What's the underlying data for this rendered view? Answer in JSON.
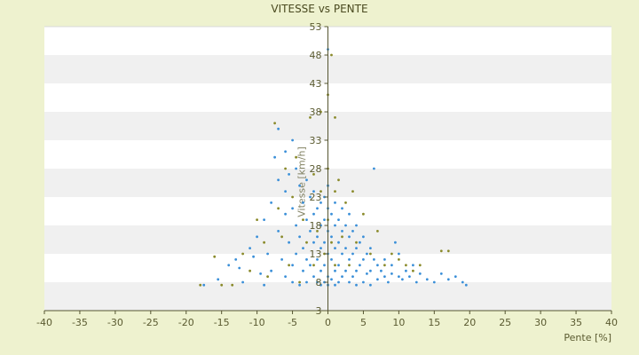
{
  "chart_data": {
    "type": "scatter",
    "title": "VITESSE vs PENTE",
    "xlabel": "Pente [%]",
    "ylabel": "Vitesse [km/h]",
    "xlim": [
      -40,
      40
    ],
    "ylim": [
      3,
      53
    ],
    "x_ticks": [
      "-40",
      "-35",
      "-30",
      "-25",
      "-20",
      "-15",
      "-10",
      "-5",
      "0",
      "5",
      "10",
      "15",
      "20",
      "25",
      "30",
      "35",
      "40"
    ],
    "y_ticks": [
      "3",
      "8",
      "13",
      "18",
      "23",
      "28",
      "33",
      "38",
      "43",
      "48",
      "53"
    ],
    "grid": "horizontal alternating bands",
    "legend": "none",
    "colors": {
      "background": "#eef2cf",
      "band_light": "#ffffff",
      "band_dark": "#f0f0f0",
      "series_blue": "#3a8fd8",
      "series_olive": "#8a8a2a",
      "axis": "#555530"
    },
    "series": [
      {
        "color": "#3a8fd8",
        "points": [
          [
            -17.5,
            7.5
          ],
          [
            -15.5,
            8.5
          ],
          [
            -14,
            11
          ],
          [
            -13,
            12
          ],
          [
            -12.5,
            10.5
          ],
          [
            -12,
            8
          ],
          [
            -11,
            14
          ],
          [
            -10.5,
            12.5
          ],
          [
            -10,
            16
          ],
          [
            -9.5,
            9.5
          ],
          [
            -9,
            19
          ],
          [
            -9,
            7.5
          ],
          [
            -8.5,
            13
          ],
          [
            -8,
            22
          ],
          [
            -8,
            10
          ],
          [
            -7.5,
            30
          ],
          [
            -7,
            35
          ],
          [
            -7,
            26
          ],
          [
            -7,
            17
          ],
          [
            -6.5,
            12
          ],
          [
            -6,
            31
          ],
          [
            -6,
            24
          ],
          [
            -6,
            20
          ],
          [
            -6,
            9
          ],
          [
            -5.5,
            27
          ],
          [
            -5.5,
            15
          ],
          [
            -5,
            33
          ],
          [
            -5,
            21
          ],
          [
            -5,
            11
          ],
          [
            -5,
            8
          ],
          [
            -4.5,
            28
          ],
          [
            -4.5,
            18
          ],
          [
            -4.5,
            13
          ],
          [
            -4,
            25
          ],
          [
            -4,
            16
          ],
          [
            -4,
            7.5
          ],
          [
            -3.5,
            22
          ],
          [
            -3.5,
            14
          ],
          [
            -3.5,
            10
          ],
          [
            -3,
            26
          ],
          [
            -3,
            19
          ],
          [
            -3,
            12
          ],
          [
            -3,
            8
          ],
          [
            -2.5,
            23
          ],
          [
            -2.5,
            17
          ],
          [
            -2.5,
            11
          ],
          [
            -2,
            24
          ],
          [
            -2,
            20
          ],
          [
            -2,
            15
          ],
          [
            -2,
            9
          ],
          [
            -1.5,
            21
          ],
          [
            -1.5,
            16
          ],
          [
            -1.5,
            12
          ],
          [
            -1.5,
            8
          ],
          [
            -1,
            22
          ],
          [
            -1,
            18
          ],
          [
            -1,
            14
          ],
          [
            -1,
            10
          ],
          [
            -1,
            7.5
          ],
          [
            -0.5,
            23
          ],
          [
            -0.5,
            19
          ],
          [
            -0.5,
            15
          ],
          [
            -0.5,
            11
          ],
          [
            -0.5,
            8
          ],
          [
            0,
            49
          ],
          [
            0,
            25
          ],
          [
            0,
            21
          ],
          [
            0,
            17
          ],
          [
            0,
            13
          ],
          [
            0,
            9
          ],
          [
            0,
            7.5
          ],
          [
            0.5,
            20
          ],
          [
            0.5,
            16
          ],
          [
            0.5,
            12
          ],
          [
            0.5,
            8.5
          ],
          [
            1,
            22
          ],
          [
            1,
            18
          ],
          [
            1,
            14
          ],
          [
            1,
            10
          ],
          [
            1,
            7.5
          ],
          [
            1.5,
            19
          ],
          [
            1.5,
            15
          ],
          [
            1.5,
            11
          ],
          [
            1.5,
            8
          ],
          [
            2,
            21
          ],
          [
            2,
            17
          ],
          [
            2,
            13
          ],
          [
            2,
            9
          ],
          [
            2.5,
            18
          ],
          [
            2.5,
            14
          ],
          [
            2.5,
            10
          ],
          [
            3,
            20
          ],
          [
            3,
            16
          ],
          [
            3,
            12
          ],
          [
            3,
            8
          ],
          [
            3.5,
            17
          ],
          [
            3.5,
            13
          ],
          [
            3.5,
            9
          ],
          [
            4,
            18
          ],
          [
            4,
            14
          ],
          [
            4,
            10
          ],
          [
            4,
            7.5
          ],
          [
            4.5,
            15
          ],
          [
            4.5,
            11
          ],
          [
            5,
            16
          ],
          [
            5,
            12
          ],
          [
            5,
            8
          ],
          [
            5.5,
            13
          ],
          [
            5.5,
            9.5
          ],
          [
            6,
            14
          ],
          [
            6,
            10
          ],
          [
            6,
            7.5
          ],
          [
            6.5,
            28
          ],
          [
            6.5,
            12
          ],
          [
            7,
            11
          ],
          [
            7,
            8.5
          ],
          [
            7.5,
            10
          ],
          [
            8,
            12
          ],
          [
            8,
            9
          ],
          [
            8.5,
            8
          ],
          [
            9,
            11
          ],
          [
            9,
            9.5
          ],
          [
            9.5,
            15
          ],
          [
            10,
            9
          ],
          [
            10,
            13
          ],
          [
            10.5,
            8.5
          ],
          [
            11,
            10
          ],
          [
            11.5,
            9
          ],
          [
            12,
            11
          ],
          [
            12.5,
            8
          ],
          [
            13,
            9.5
          ],
          [
            14,
            8.5
          ],
          [
            15,
            8
          ],
          [
            16,
            9.5
          ],
          [
            17,
            8.5
          ],
          [
            18,
            9
          ],
          [
            19,
            8
          ],
          [
            19.5,
            7.5
          ]
        ]
      },
      {
        "color": "#8a8a2a",
        "points": [
          [
            -18,
            7.5
          ],
          [
            -16,
            12.5
          ],
          [
            -15,
            7.5
          ],
          [
            -13.5,
            7.5
          ],
          [
            -12,
            13
          ],
          [
            -11,
            10
          ],
          [
            -10,
            19
          ],
          [
            -9,
            15
          ],
          [
            -8.5,
            9
          ],
          [
            -7.5,
            36
          ],
          [
            -7,
            21
          ],
          [
            -6.5,
            16
          ],
          [
            -6,
            28
          ],
          [
            -5.5,
            11
          ],
          [
            -5,
            23
          ],
          [
            -4.5,
            30
          ],
          [
            -4,
            8
          ],
          [
            -3.5,
            19
          ],
          [
            -3,
            15
          ],
          [
            -2.5,
            37
          ],
          [
            -2,
            27
          ],
          [
            -2,
            11
          ],
          [
            -1.5,
            17
          ],
          [
            -1,
            38
          ],
          [
            -1,
            24
          ],
          [
            -0.5,
            13
          ],
          [
            0,
            41
          ],
          [
            0,
            28
          ],
          [
            0,
            19
          ],
          [
            0.5,
            48
          ],
          [
            0.5,
            15
          ],
          [
            1,
            37
          ],
          [
            1,
            24
          ],
          [
            1,
            11
          ],
          [
            1.5,
            26
          ],
          [
            2,
            16
          ],
          [
            2.5,
            22
          ],
          [
            3,
            11
          ],
          [
            3.5,
            24
          ],
          [
            4,
            15
          ],
          [
            5,
            20
          ],
          [
            6,
            13
          ],
          [
            7,
            17
          ],
          [
            8,
            11
          ],
          [
            9,
            13
          ],
          [
            10,
            12
          ],
          [
            11,
            11
          ],
          [
            12,
            10
          ],
          [
            13,
            11
          ],
          [
            16,
            13.5
          ],
          [
            17,
            13.5
          ]
        ]
      }
    ]
  }
}
